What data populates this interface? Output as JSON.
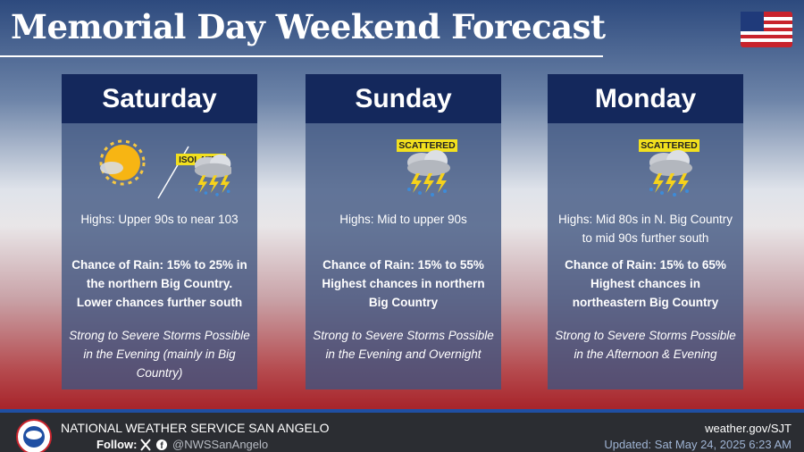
{
  "header": {
    "title": "Memorial Day Weekend Forecast"
  },
  "days": [
    {
      "name": "Saturday",
      "badge": "ISOLATED",
      "highs": "Highs: Upper 90s to near 103",
      "rain": "Chance of Rain: 15% to 25% in the northern Big Country. Lower chances further south",
      "storms": "Strong to Severe Storms Possible in the Evening (mainly in Big Country)"
    },
    {
      "name": "Sunday",
      "badge": "SCATTERED",
      "highs": "Highs: Mid to upper 90s",
      "rain": "Chance of Rain: 15% to 55% Highest chances in northern Big Country",
      "storms": "Strong to Severe Storms Possible in the Evening and Overnight"
    },
    {
      "name": "Monday",
      "badge": "SCATTERED",
      "highs": "Highs: Mid 80s in N. Big Country to mid 90s further south",
      "rain": "Chance of Rain: 15% to 65% Highest chances in northeastern Big Country",
      "storms": "Strong to Severe Storms Possible in the Afternoon & Evening"
    }
  ],
  "footer": {
    "office": "NATIONAL WEATHER SERVICE SAN ANGELO",
    "follow": "Follow:",
    "handle": "@NWSSanAngelo",
    "url": "weather.gov/SJT",
    "updated": "Updated: Sat May 24, 2025 6:23 AM"
  }
}
